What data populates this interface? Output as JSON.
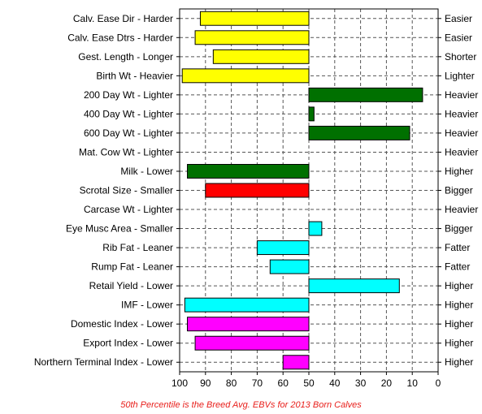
{
  "chart_data": {
    "type": "bar",
    "orientation": "horizontal",
    "x_axis": {
      "ticks": [
        100,
        90,
        80,
        70,
        60,
        50,
        40,
        30,
        20,
        10,
        0
      ],
      "range": [
        100,
        0
      ],
      "reversed": true
    },
    "baseline": 50,
    "grid": true,
    "footnote": "50th Percentile is the Breed Avg. EBVs for 2013 Born Calves",
    "rows": [
      {
        "left": "Calv. Ease Dir - Harder",
        "right": "Easier",
        "value": 92,
        "color": "#ffff00"
      },
      {
        "left": "Calv. Ease Dtrs - Harder",
        "right": "Easier",
        "value": 94,
        "color": "#ffff00"
      },
      {
        "left": "Gest. Length - Longer",
        "right": "Shorter",
        "value": 87,
        "color": "#ffff00"
      },
      {
        "left": "Birth Wt - Heavier",
        "right": "Lighter",
        "value": 99,
        "color": "#ffff00"
      },
      {
        "left": "200 Day Wt - Lighter",
        "right": "Heavier",
        "value": 6,
        "color": "#007000"
      },
      {
        "left": "400 Day Wt - Lighter",
        "right": "Heavier",
        "value": 48,
        "color": "#007000"
      },
      {
        "left": "600 Day Wt - Lighter",
        "right": "Heavier",
        "value": 11,
        "color": "#007000"
      },
      {
        "left": "Mat. Cow Wt - Lighter",
        "right": "Heavier",
        "value": 50,
        "color": "#007000"
      },
      {
        "left": "Milk - Lower",
        "right": "Higher",
        "value": 97,
        "color": "#007000"
      },
      {
        "left": "Scrotal Size - Smaller",
        "right": "Bigger",
        "value": 90,
        "color": "#ff0000"
      },
      {
        "left": "Carcase Wt - Lighter",
        "right": "Heavier",
        "value": 50,
        "color": "#00ffff"
      },
      {
        "left": "Eye Musc Area - Smaller",
        "right": "Bigger",
        "value": 45,
        "color": "#00ffff"
      },
      {
        "left": "Rib Fat - Leaner",
        "right": "Fatter",
        "value": 70,
        "color": "#00ffff"
      },
      {
        "left": "Rump Fat - Leaner",
        "right": "Fatter",
        "value": 65,
        "color": "#00ffff"
      },
      {
        "left": "Retail Yield - Lower",
        "right": "Higher",
        "value": 15,
        "color": "#00ffff"
      },
      {
        "left": "IMF - Lower",
        "right": "Higher",
        "value": 98,
        "color": "#00ffff"
      },
      {
        "left": "Domestic Index - Lower",
        "right": "Higher",
        "value": 97,
        "color": "#ff00ff"
      },
      {
        "left": "Export Index - Lower",
        "right": "Higher",
        "value": 94,
        "color": "#ff00ff"
      },
      {
        "left": "Northern Terminal Index - Lower",
        "right": "Higher",
        "value": 60,
        "color": "#ff00ff"
      }
    ]
  }
}
